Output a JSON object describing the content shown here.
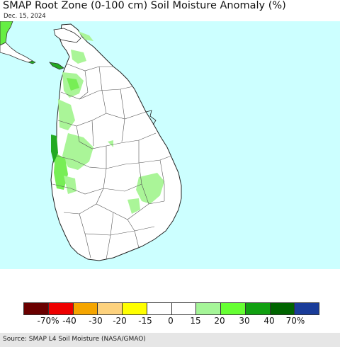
{
  "title": "SMAP Root Zone (0-100 cm) Soil Moisture Anomaly (%)",
  "date": "Dec. 15, 2024",
  "source": "Source: SMAP L4 Soil Moisture (NASA/GMAO)",
  "colors": {
    "ocean": "#ccffff",
    "land": "#ffffff",
    "border": "#333333",
    "india_land": "#66ee44",
    "wet_20": "#aaf598",
    "wet_30": "#77ee55",
    "wet_40": "#22aa22"
  },
  "legend": {
    "colors": [
      "#6a0000",
      "#ee0000",
      "#f5a500",
      "#fdd27e",
      "#ffff00",
      "#ffffff",
      "#ffffff",
      "#a5f598",
      "#66ff33",
      "#11a011",
      "#006400",
      "#1a3c99"
    ],
    "ticks": [
      "-70%",
      "-40",
      "-30",
      "-20",
      "-15",
      "0",
      "15",
      "20",
      "30",
      "40",
      "70%"
    ]
  }
}
